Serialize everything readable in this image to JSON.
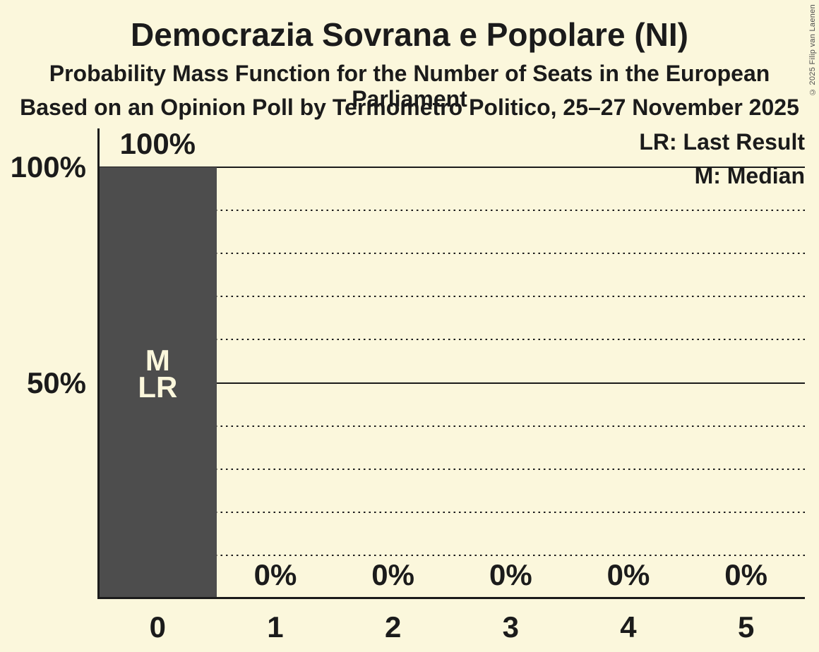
{
  "title": "Democrazia Sovrana e Popolare (NI)",
  "subtitle1": "Probability Mass Function for the Number of Seats in the European Parliament",
  "subtitle2": "Based on an Opinion Poll by Termometro Politico, 25–27 November 2025",
  "copyright": "© 2025 Filip van Laenen",
  "legend": {
    "lr": "LR: Last Result",
    "m": "M: Median"
  },
  "colors": {
    "background": "#FBF7DC",
    "bar": "#4D4D4D",
    "text": "#1B1B1B",
    "bar_label": "#FBF7DC"
  },
  "y_axis": {
    "ticks": [
      {
        "label": "100%",
        "value": 100
      },
      {
        "label": "50%",
        "value": 50
      }
    ]
  },
  "chart_data": {
    "type": "bar",
    "categories": [
      "0",
      "1",
      "2",
      "3",
      "4",
      "5"
    ],
    "values": [
      100,
      0,
      0,
      0,
      0,
      0
    ],
    "value_labels": [
      "100%",
      "0%",
      "0%",
      "0%",
      "0%",
      "0%"
    ],
    "annotations": [
      [
        "M",
        "LR"
      ],
      [],
      [],
      [],
      [],
      []
    ],
    "title": "Democrazia Sovrana e Popolare (NI)",
    "xlabel": "",
    "ylabel": "",
    "ylim": [
      0,
      100
    ],
    "gridlines": {
      "solid": [
        50,
        100
      ],
      "dotted": [
        10,
        20,
        30,
        40,
        60,
        70,
        80,
        90
      ]
    },
    "legend_position": "top-right",
    "median": 0,
    "last_result": 0
  }
}
